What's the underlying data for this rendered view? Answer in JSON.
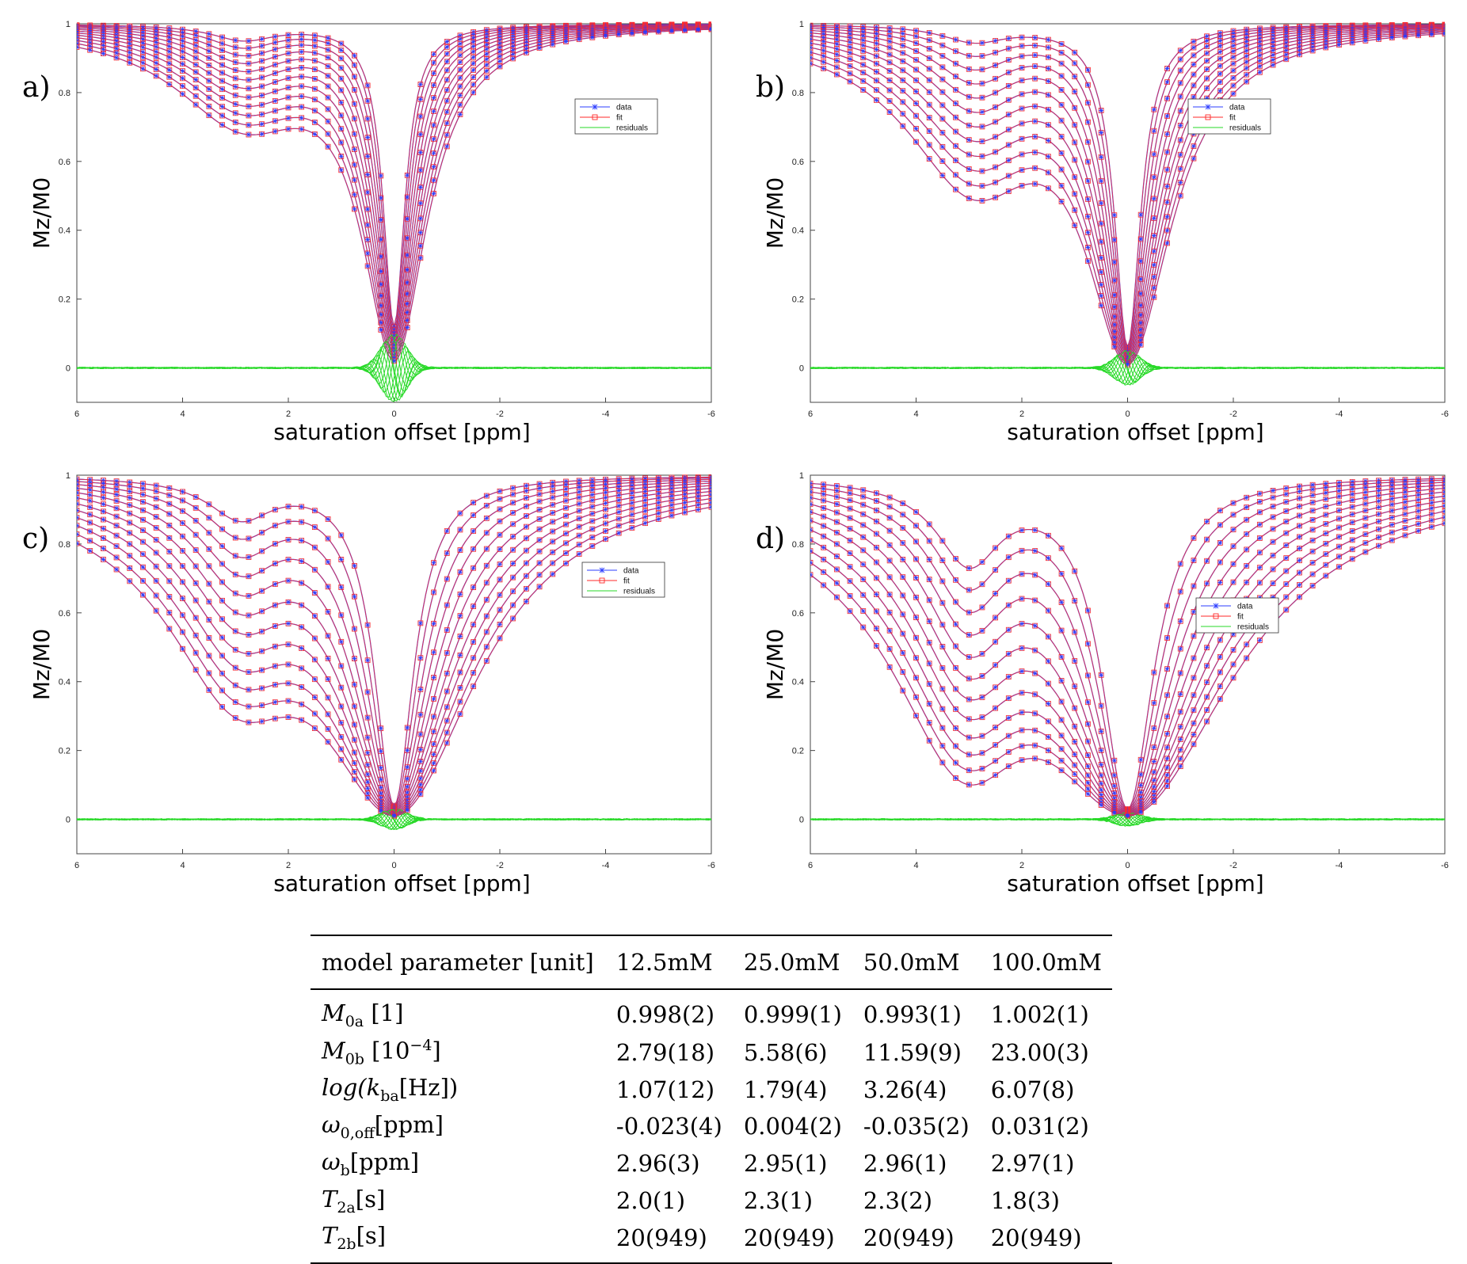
{
  "chart_data": [
    {
      "type": "line",
      "panel_label": "a)",
      "xlabel": "saturation offset [ppm]",
      "ylabel": "Mz/M0",
      "xlim": [
        6,
        -6
      ],
      "ylim": [
        -0.1,
        1.0
      ],
      "x_ticks": [
        "6",
        "4",
        "2",
        "0",
        "-2",
        "-4",
        "-6"
      ],
      "y_ticks": [
        "0",
        "0.2",
        "0.4",
        "0.6",
        "0.8",
        "1"
      ],
      "legend": {
        "placement": "upper-right",
        "entries": [
          "data",
          "fit",
          "residuals"
        ]
      },
      "model": {
        "num_curves": 12,
        "solute_offset_ppm": 2.85,
        "solute_dip_min": 0.05,
        "solute_dip_max": 0.28,
        "water_width_min": 0.25,
        "water_width_max": 0.75,
        "center_min": 0.02,
        "center_max": 0.12,
        "residual_amplitude": 0.1
      },
      "annotations": [
        "data curves min near 0.72 at 2.8 ppm"
      ]
    },
    {
      "type": "line",
      "panel_label": "b)",
      "xlabel": "saturation offset [ppm]",
      "ylabel": "Mz/M0",
      "xlim": [
        6,
        -6
      ],
      "ylim": [
        -0.1,
        1.0
      ],
      "x_ticks": [
        "6",
        "4",
        "2",
        "0",
        "-2",
        "-4",
        "-6"
      ],
      "y_ticks": [
        "0",
        "0.2",
        "0.4",
        "0.6",
        "0.8",
        "1"
      ],
      "legend": {
        "placement": "upper-right",
        "entries": [
          "data",
          "fit",
          "residuals"
        ]
      },
      "model": {
        "num_curves": 12,
        "solute_offset_ppm": 2.9,
        "solute_dip_min": 0.05,
        "solute_dip_max": 0.46,
        "water_width_min": 0.3,
        "water_width_max": 1.0,
        "center_min": 0.01,
        "center_max": 0.06,
        "residual_amplitude": 0.05
      }
    },
    {
      "type": "line",
      "panel_label": "c)",
      "xlabel": "saturation offset [ppm]",
      "ylabel": "Mz/M0",
      "xlim": [
        6,
        -6
      ],
      "ylim": [
        -0.1,
        1.0
      ],
      "x_ticks": [
        "6",
        "4",
        "2",
        "0",
        "-2",
        "-4",
        "-6"
      ],
      "y_ticks": [
        "0",
        "0.2",
        "0.4",
        "0.6",
        "0.8",
        "1"
      ],
      "legend": {
        "placement": "upper-right",
        "entries": [
          "data",
          "fit",
          "residuals"
        ]
      },
      "model": {
        "num_curves": 12,
        "solute_offset_ppm": 2.9,
        "solute_dip_min": 0.12,
        "solute_dip_max": 0.6,
        "water_width_min": 0.45,
        "water_width_max": 1.9,
        "center_min": 0.01,
        "center_max": 0.04,
        "residual_amplitude": 0.03
      }
    },
    {
      "type": "line",
      "panel_label": "d)",
      "xlabel": "saturation offset [ppm]",
      "ylabel": "Mz/M0",
      "xlim": [
        6,
        -6
      ],
      "ylim": [
        -0.1,
        1.0
      ],
      "x_ticks": [
        "6",
        "4",
        "2",
        "0",
        "-2",
        "-4",
        "-6"
      ],
      "y_ticks": [
        "0",
        "0.2",
        "0.4",
        "0.6",
        "0.8",
        "1"
      ],
      "legend": {
        "placement": "upper-right",
        "entries": [
          "data",
          "fit",
          "residuals"
        ]
      },
      "model": {
        "num_curves": 12,
        "solute_offset_ppm": 3.0,
        "solute_dip_min": 0.25,
        "solute_dip_max": 0.85,
        "water_width_min": 0.6,
        "water_width_max": 2.4,
        "center_min": 0.01,
        "center_max": 0.03,
        "residual_amplitude": 0.02
      }
    }
  ],
  "table": {
    "headers": [
      "model parameter [unit]",
      "12.5mM",
      "25.0mM",
      "50.0mM",
      "100.0mM"
    ],
    "rows": [
      {
        "param": "M",
        "sub": "0a",
        "unit": " [1]",
        "values": [
          "0.998(2)",
          "0.999(1)",
          "0.993(1)",
          "1.002(1)"
        ]
      },
      {
        "param": "M",
        "sub": "0b",
        "unit": " [10",
        "sup": "−4",
        "unit_tail": "]",
        "values": [
          "2.79(18)",
          "5.58(6)",
          "11.59(9)",
          "23.00(3)"
        ]
      },
      {
        "param": "log(k",
        "sub": "ba",
        "unit": "[Hz])",
        "values": [
          "1.07(12)",
          "1.79(4)",
          "3.26(4)",
          "6.07(8)"
        ]
      },
      {
        "param": "ω",
        "sub": "0,off",
        "unit": "[ppm]",
        "values": [
          "-0.023(4)",
          "0.004(2)",
          "-0.035(2)",
          "0.031(2)"
        ]
      },
      {
        "param": "ω",
        "sub": "b",
        "unit": "[ppm]",
        "values": [
          "2.96(3)",
          "2.95(1)",
          "2.96(1)",
          "2.97(1)"
        ]
      },
      {
        "param": "T",
        "sub": "2a",
        "unit": "[s]",
        "values": [
          "2.0(1)",
          "2.3(1)",
          "2.3(2)",
          "1.8(3)"
        ]
      },
      {
        "param": "T",
        "sub": "2b",
        "unit": "[s]",
        "values": [
          "20(949)",
          "20(949)",
          "20(949)",
          "20(949)"
        ]
      }
    ]
  },
  "colors": {
    "data": "#2b3cff",
    "fit": "#ff2a2a",
    "residuals": "#27d927",
    "axis": "#444444"
  }
}
